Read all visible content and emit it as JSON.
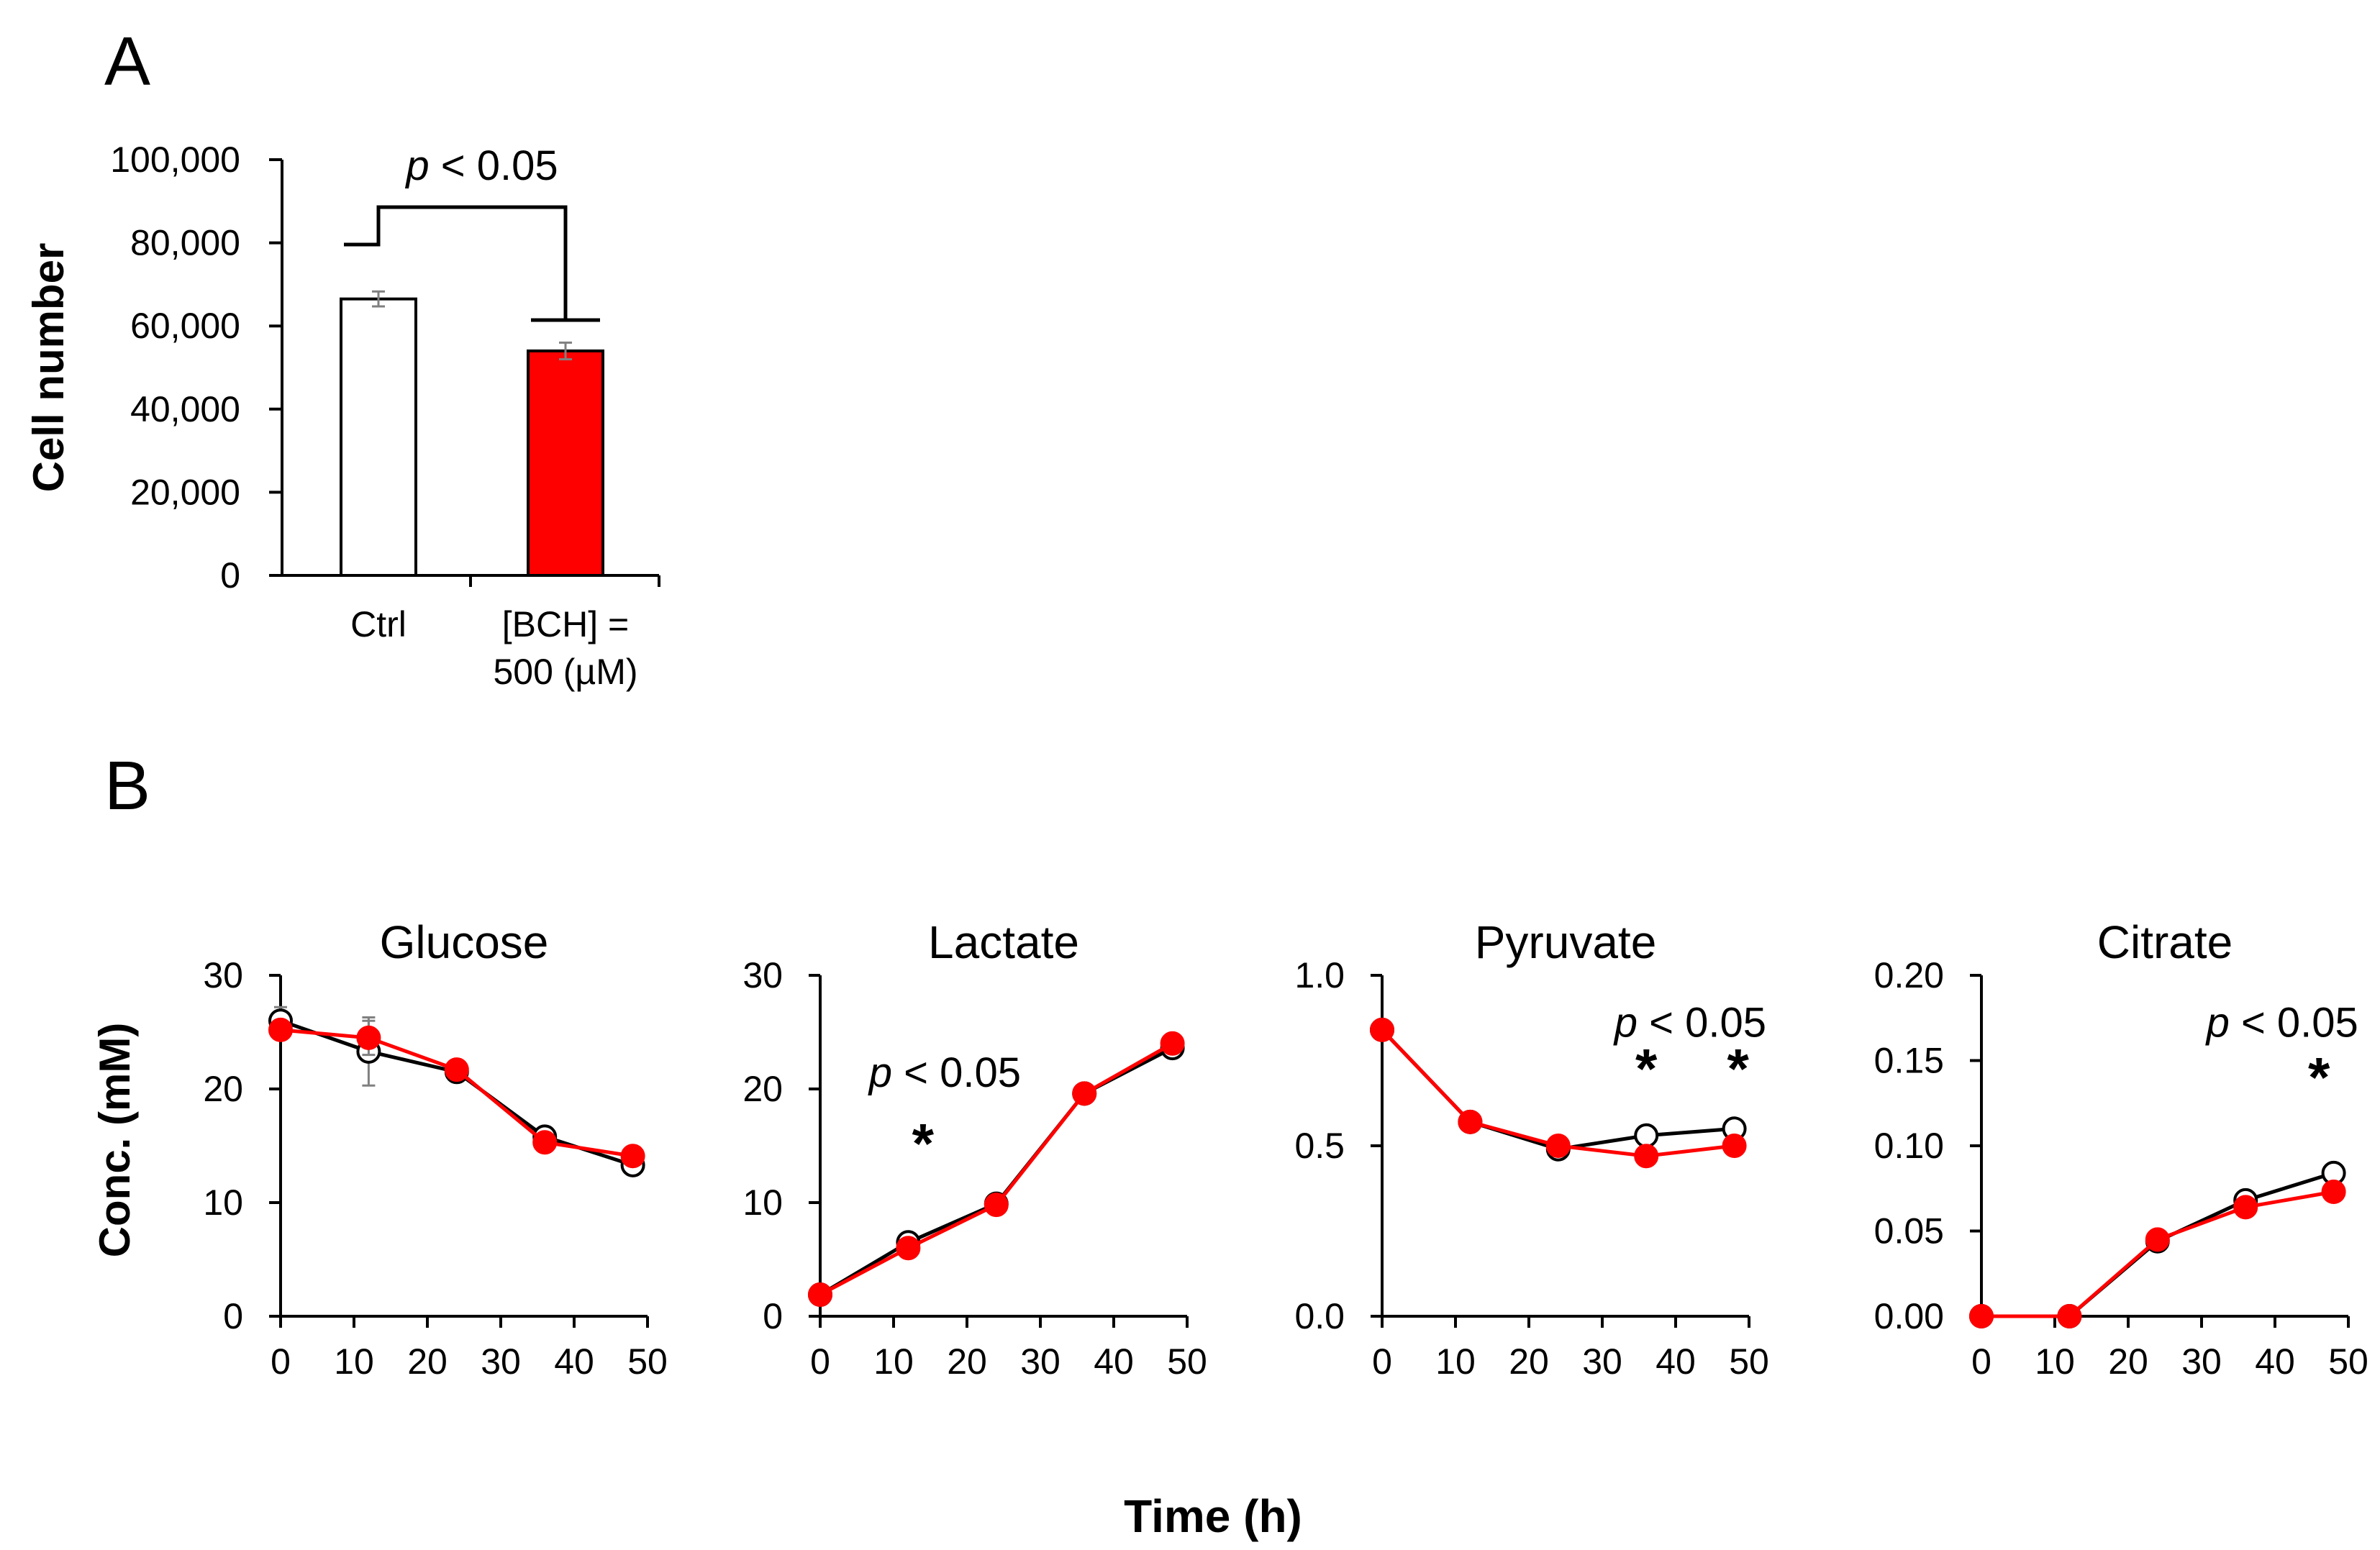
{
  "panels": {
    "a": "A",
    "b": "B"
  },
  "chart_data": [
    {
      "type": "bar",
      "panel": "A",
      "ylabel": "Cell number",
      "ylim": [
        0,
        100000
      ],
      "yticks": [
        0,
        20000,
        40000,
        60000,
        80000,
        100000
      ],
      "ytick_labels": [
        "0",
        "20,000",
        "40,000",
        "60,000",
        "80,000",
        "100,000"
      ],
      "categories": [
        {
          "lines": [
            "Ctrl"
          ]
        },
        {
          "lines": [
            "[BCH] =",
            "500 (µM)"
          ]
        }
      ],
      "values": [
        66500,
        54000
      ],
      "errors": [
        1800,
        2000
      ],
      "colors": [
        "#ffffff",
        "#ff0000"
      ],
      "annotation": {
        "italic": "p",
        "text": " < 0.05"
      }
    },
    {
      "type": "line",
      "title": "Glucose",
      "ylim": [
        0,
        30
      ],
      "yticks": [
        0,
        10,
        20,
        30
      ],
      "ytick_labels": [
        "0",
        "10",
        "20",
        "30"
      ],
      "xlim": [
        0,
        50
      ],
      "xticks": [
        0,
        10,
        20,
        30,
        40,
        50
      ],
      "series": [
        {
          "name": "Ctrl",
          "x": [
            0,
            12,
            24,
            36,
            48
          ],
          "y": [
            26,
            23.3,
            21.5,
            15.8,
            13.3
          ],
          "err": [
            1.2,
            3.0,
            0.4,
            0.5,
            0.4
          ]
        },
        {
          "name": "BCH",
          "x": [
            0,
            12,
            24,
            36,
            48
          ],
          "y": [
            25.2,
            24.5,
            21.7,
            15.3,
            14.1
          ],
          "err": [
            0.6,
            1.5,
            0.4,
            0.5,
            0.4
          ]
        }
      ],
      "annotations": []
    },
    {
      "type": "line",
      "title": "Lactate",
      "ylim": [
        0,
        30
      ],
      "yticks": [
        0,
        10,
        20,
        30
      ],
      "ytick_labels": [
        "0",
        "10",
        "20",
        "30"
      ],
      "xlim": [
        0,
        50
      ],
      "xticks": [
        0,
        10,
        20,
        30,
        40,
        50
      ],
      "series": [
        {
          "name": "Ctrl",
          "x": [
            0,
            12,
            24,
            36,
            48
          ],
          "y": [
            1.9,
            6.5,
            9.9,
            19.6,
            23.6
          ],
          "err": [
            0.2,
            0.3,
            0.3,
            0.4,
            0.6
          ]
        },
        {
          "name": "BCH",
          "x": [
            0,
            12,
            24,
            36,
            48
          ],
          "y": [
            1.9,
            6.0,
            9.8,
            19.6,
            24.0
          ],
          "err": [
            0.2,
            0.3,
            0.3,
            0.4,
            0.8
          ]
        }
      ],
      "annotations": [
        {
          "italic": "p",
          "text": " < 0.05",
          "x": 17,
          "y": 20.2
        },
        {
          "text": "*",
          "x": 14,
          "y": 13.5
        }
      ]
    },
    {
      "type": "line",
      "title": "Pyruvate",
      "ylim": [
        0,
        1
      ],
      "yticks": [
        0,
        0.5,
        1
      ],
      "ytick_labels": [
        "0.0",
        "0.5",
        "1.0"
      ],
      "xlim": [
        0,
        50
      ],
      "xticks": [
        0,
        10,
        20,
        30,
        40,
        50
      ],
      "series": [
        {
          "name": "Ctrl",
          "x": [
            0,
            12,
            24,
            36,
            48
          ],
          "y": [
            0.84,
            0.57,
            0.49,
            0.53,
            0.55
          ],
          "err": [
            0.01,
            0.01,
            0.01,
            0.01,
            0.01
          ]
        },
        {
          "name": "BCH",
          "x": [
            0,
            12,
            24,
            36,
            48
          ],
          "y": [
            0.84,
            0.57,
            0.5,
            0.47,
            0.5
          ],
          "err": [
            0.01,
            0.01,
            0.01,
            0.01,
            0.01
          ]
        }
      ],
      "annotations": [
        {
          "italic": "p",
          "text": " < 0.05",
          "x": 42,
          "y": 0.82
        },
        {
          "text": "*",
          "x": 36,
          "y": 0.67
        },
        {
          "text": "*",
          "x": 48.5,
          "y": 0.67
        }
      ]
    },
    {
      "type": "line",
      "title": "Citrate",
      "ylim": [
        0,
        0.2
      ],
      "yticks": [
        0,
        0.05,
        0.1,
        0.15,
        0.2
      ],
      "ytick_labels": [
        "0.00",
        "0.05",
        "0.10",
        "0.15",
        "0.20"
      ],
      "xlim": [
        0,
        50
      ],
      "xticks": [
        0,
        10,
        20,
        30,
        40,
        50
      ],
      "series": [
        {
          "name": "Ctrl",
          "x": [
            0,
            12,
            24,
            36,
            48
          ],
          "y": [
            0,
            0,
            0.044,
            0.068,
            0.084
          ],
          "err": [
            0,
            0,
            0.001,
            0.002,
            0.002
          ]
        },
        {
          "name": "BCH",
          "x": [
            0,
            12,
            24,
            36,
            48
          ],
          "y": [
            0,
            0,
            0.045,
            0.064,
            0.073
          ],
          "err": [
            0,
            0,
            0.001,
            0.002,
            0.002
          ]
        }
      ],
      "annotations": [
        {
          "italic": "p",
          "text": " < 0.05",
          "x": 41,
          "y": 0.164
        },
        {
          "text": "*",
          "x": 46,
          "y": 0.129
        }
      ]
    }
  ],
  "panel_b": {
    "ylabel": "Conc. (mM)",
    "xlabel": "Time (h)"
  },
  "colors": {
    "ctrl_fill": "#ffffff",
    "bch_fill": "#ff0000",
    "ctrl_line": "#000000",
    "bch_line": "#ff0000",
    "error_bar": "#808080"
  }
}
